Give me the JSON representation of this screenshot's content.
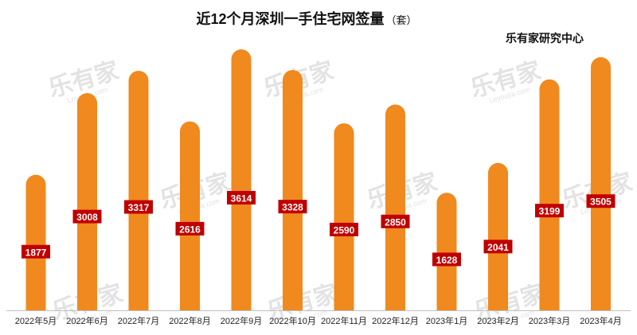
{
  "header": {
    "title": "近12个月深圳一手住宅网签量",
    "unit": "（套）",
    "source": "乐有家研究中心"
  },
  "watermark": {
    "brand": "乐有家",
    "site": "Leyoujia.com"
  },
  "colors": {
    "bar": "#F0891E",
    "label_bg": "#C00000",
    "label_text": "#FFFFFF",
    "axis": "#BFBFBF"
  },
  "chart_data": {
    "type": "bar",
    "title": "近12个月深圳一手住宅网签量",
    "xlabel": "",
    "ylabel": "",
    "ylim": [
      0,
      4000
    ],
    "categories": [
      "2022年5月",
      "2022年6月",
      "2022年7月",
      "2022年8月",
      "2022年9月",
      "2022年10月",
      "2022年11月",
      "2022年12月",
      "2023年1月",
      "2023年2月",
      "2023年3月",
      "2023年4月"
    ],
    "values": [
      1877,
      3008,
      3317,
      2616,
      3614,
      3328,
      2590,
      2850,
      1628,
      2041,
      3199,
      3505
    ],
    "data_labels": true,
    "grid": false,
    "legend": "none"
  }
}
